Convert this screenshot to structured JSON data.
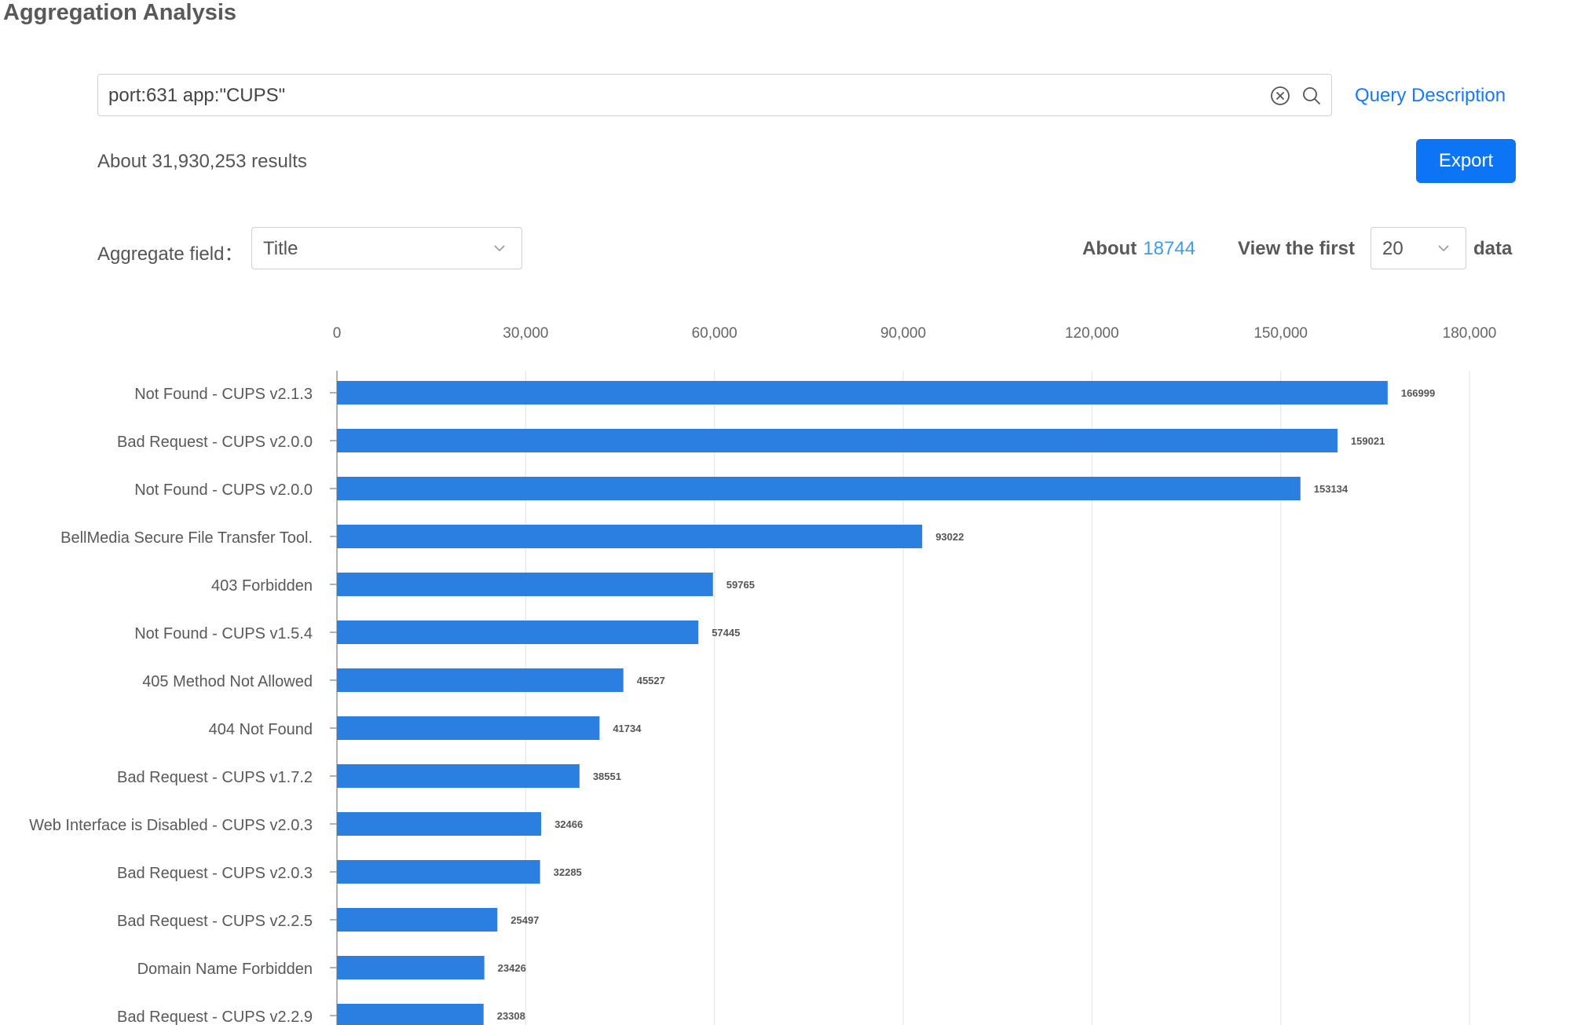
{
  "page": {
    "title": "Aggregation Analysis"
  },
  "search": {
    "query": "port:631 app:\"CUPS\""
  },
  "query_description_label": "Query Description",
  "results_summary": "About 31,930,253 results",
  "export_label": "Export",
  "aggregate": {
    "label": "Aggregate field：",
    "selected": "Title"
  },
  "about": {
    "prefix": "About",
    "count": "18744"
  },
  "view_first": {
    "label": "View the first",
    "selected": "20",
    "suffix": "data"
  },
  "colors": {
    "bar": "#2a7fe0",
    "accent": "#1677ff",
    "grid": "#e6e6e6"
  },
  "icons": {
    "clear": "close-circle-icon",
    "search": "search-icon",
    "dropdown": "chevron-down-icon"
  },
  "chart_data": {
    "type": "bar",
    "orientation": "horizontal",
    "categories": [
      "Not Found - CUPS v2.1.3",
      "Bad Request - CUPS v2.0.0",
      "Not Found - CUPS v2.0.0",
      "BellMedia Secure File Transfer Tool.",
      "403 Forbidden",
      "Not Found - CUPS v1.5.4",
      "405 Method Not Allowed",
      "404 Not Found",
      "Bad Request - CUPS v1.7.2",
      "Web Interface is Disabled - CUPS v2.0.3",
      "Bad Request - CUPS v2.0.3",
      "Bad Request - CUPS v2.2.5",
      "Domain Name Forbidden",
      "Bad Request - CUPS v2.2.9"
    ],
    "values": [
      166999,
      159021,
      153134,
      93022,
      59765,
      57445,
      45527,
      41734,
      38551,
      32466,
      32285,
      25497,
      23426,
      23308
    ],
    "xticks": [
      0,
      30000,
      60000,
      90000,
      120000,
      150000,
      180000
    ],
    "xtick_labels": [
      "0",
      "30,000",
      "60,000",
      "90,000",
      "120,000",
      "150,000",
      "180,000"
    ],
    "xlim": [
      0,
      180000
    ],
    "grid": true,
    "xaxis_position": "top"
  }
}
